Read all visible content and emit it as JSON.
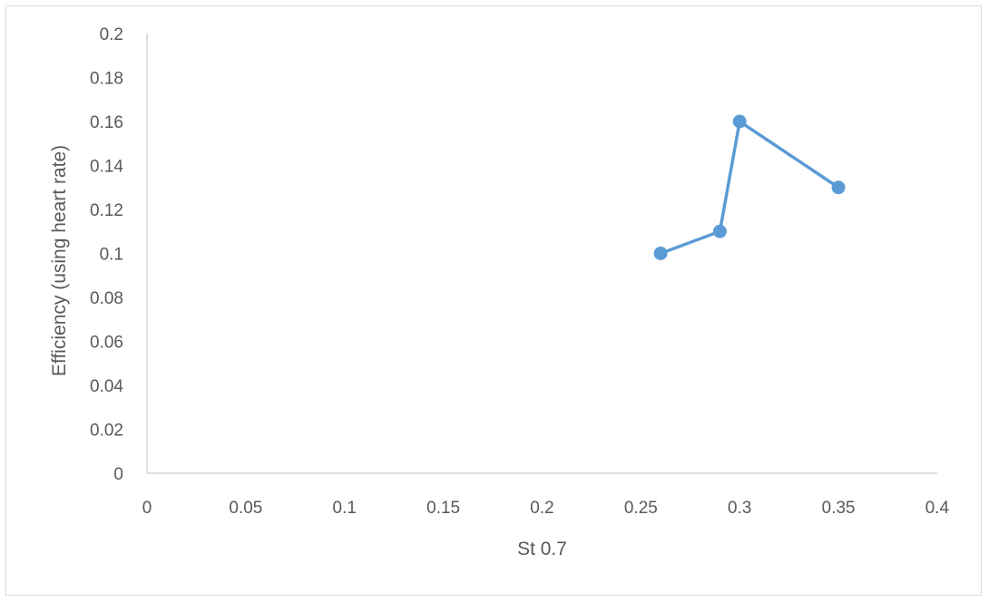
{
  "chart_data": {
    "type": "line",
    "title": "",
    "xlabel": "St 0.7",
    "ylabel": "Efficiency (using heart rate)",
    "xlim": [
      0,
      0.4
    ],
    "ylim": [
      0,
      0.2
    ],
    "x_ticks": [
      0,
      0.05,
      0.1,
      0.15,
      0.2,
      0.25,
      0.3,
      0.35,
      0.4
    ],
    "y_ticks": [
      0,
      0.02,
      0.04,
      0.06,
      0.08,
      0.1,
      0.12,
      0.14,
      0.16,
      0.18,
      0.2
    ],
    "x_tick_labels": [
      "0",
      "0.05",
      "0.1",
      "0.15",
      "0.2",
      "0.25",
      "0.3",
      "0.35",
      "0.4"
    ],
    "y_tick_labels": [
      "0",
      "0.02",
      "0.04",
      "0.06",
      "0.08",
      "0.1",
      "0.12",
      "0.14",
      "0.16",
      "0.18",
      "0.2"
    ],
    "grid": false,
    "legend": "none",
    "series": [
      {
        "color": "#5b9bd5",
        "markers": true,
        "points": [
          {
            "x": 0.26,
            "y": 0.1
          },
          {
            "x": 0.29,
            "y": 0.11
          },
          {
            "x": 0.3,
            "y": 0.16
          },
          {
            "x": 0.35,
            "y": 0.13
          }
        ]
      }
    ],
    "axis_color": "#bfbfbf",
    "text_color": "#595959"
  }
}
